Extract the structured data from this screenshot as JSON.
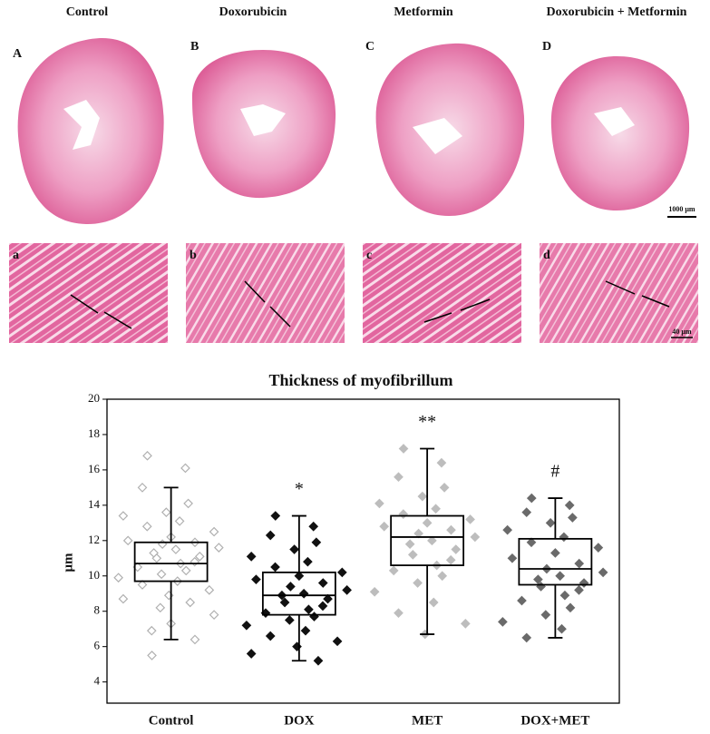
{
  "panels": {
    "headers": [
      "Control",
      "Doxorubicin",
      "Metformin",
      "Doxorubicin + Metformin"
    ],
    "letters_upper": [
      "A",
      "B",
      "C",
      "D"
    ],
    "letters_lower": [
      "a",
      "b",
      "c",
      "d"
    ],
    "scale_bars": [
      "1000 μm",
      "40 μm"
    ]
  },
  "chart_data": {
    "type": "box",
    "title": "Thickness of myofibrillum",
    "y_label": "μm",
    "categories": [
      "Control",
      "DOX",
      "MET",
      "DOX+MET"
    ],
    "significance": [
      null,
      "*",
      "**",
      "#"
    ],
    "ylim": [
      2.8,
      20
    ],
    "yticks": [
      4,
      6,
      8,
      10,
      12,
      14,
      16,
      18,
      20
    ],
    "boxes": [
      {
        "min": 6.4,
        "q1": 9.7,
        "median": 10.7,
        "q3": 11.9,
        "max": 15.0
      },
      {
        "min": 5.2,
        "q1": 7.8,
        "median": 8.9,
        "q3": 10.2,
        "max": 13.4
      },
      {
        "min": 6.7,
        "q1": 10.6,
        "median": 12.2,
        "q3": 13.4,
        "max": 17.2
      },
      {
        "min": 6.5,
        "q1": 9.5,
        "median": 10.4,
        "q3": 12.1,
        "max": 14.4
      }
    ],
    "points": [
      [
        16.8,
        16.1,
        15.0,
        14.1,
        13.6,
        13.4,
        13.1,
        12.8,
        12.5,
        12.2,
        12.0,
        11.9,
        11.8,
        11.6,
        11.5,
        11.3,
        11.1,
        11.0,
        10.8,
        10.7,
        10.5,
        10.3,
        10.1,
        9.9,
        9.7,
        9.5,
        9.2,
        8.9,
        8.7,
        8.5,
        8.2,
        7.8,
        7.3,
        6.9,
        6.4,
        5.5
      ],
      [
        13.4,
        12.8,
        12.3,
        11.9,
        11.5,
        11.1,
        10.8,
        10.5,
        10.2,
        10.0,
        9.8,
        9.6,
        9.4,
        9.2,
        9.0,
        8.9,
        8.7,
        8.5,
        8.3,
        8.1,
        7.9,
        7.7,
        7.5,
        7.2,
        6.9,
        6.6,
        6.3,
        6.0,
        5.6,
        5.2
      ],
      [
        17.2,
        16.4,
        15.6,
        15.0,
        14.5,
        14.1,
        13.8,
        13.5,
        13.2,
        13.0,
        12.8,
        12.6,
        12.4,
        12.2,
        12.0,
        11.8,
        11.5,
        11.2,
        10.9,
        10.6,
        10.3,
        10.0,
        9.6,
        9.1,
        8.5,
        7.9,
        7.3,
        6.7
      ],
      [
        14.4,
        14.0,
        13.6,
        13.3,
        13.0,
        12.6,
        12.2,
        11.9,
        11.6,
        11.3,
        11.0,
        10.7,
        10.4,
        10.2,
        10.0,
        9.8,
        9.6,
        9.4,
        9.2,
        8.9,
        8.6,
        8.2,
        7.8,
        7.4,
        7.0,
        6.5
      ]
    ],
    "point_colors": [
      "#b0b0b0",
      "#111111",
      "#bdbdbd",
      "#6a6a6a"
    ],
    "point_filled": [
      false,
      true,
      true,
      true
    ]
  }
}
